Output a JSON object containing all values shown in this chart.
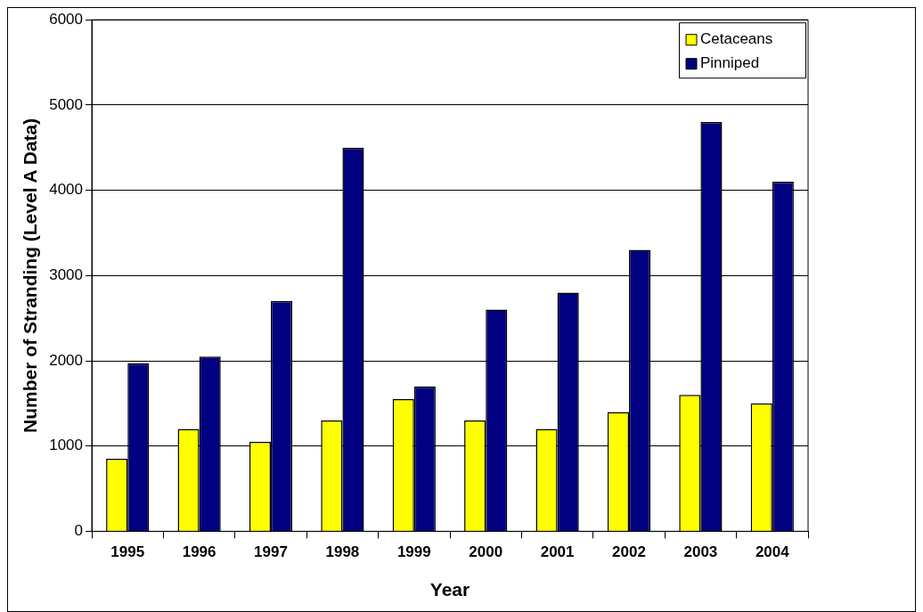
{
  "chart_data": {
    "type": "bar",
    "xlabel": "Year",
    "ylabel": "Number of Stranding (Level A Data)",
    "categories": [
      "1995",
      "1996",
      "1997",
      "1998",
      "1999",
      "2000",
      "2001",
      "2002",
      "2003",
      "2004"
    ],
    "series": [
      {
        "name": "Cetaceans",
        "color": "#ffff00",
        "values": [
          850,
          1200,
          1050,
          1300,
          1550,
          1300,
          1200,
          1400,
          1600,
          1500
        ]
      },
      {
        "name": "Pinniped",
        "color": "#000080",
        "values": [
          1970,
          2050,
          2700,
          4500,
          1700,
          2600,
          2800,
          3300,
          4800,
          4100
        ]
      }
    ],
    "ylim": [
      0,
      6000
    ],
    "yticks": [
      0,
      1000,
      2000,
      3000,
      4000,
      5000,
      6000
    ],
    "grid": "y",
    "legend": "top right"
  }
}
